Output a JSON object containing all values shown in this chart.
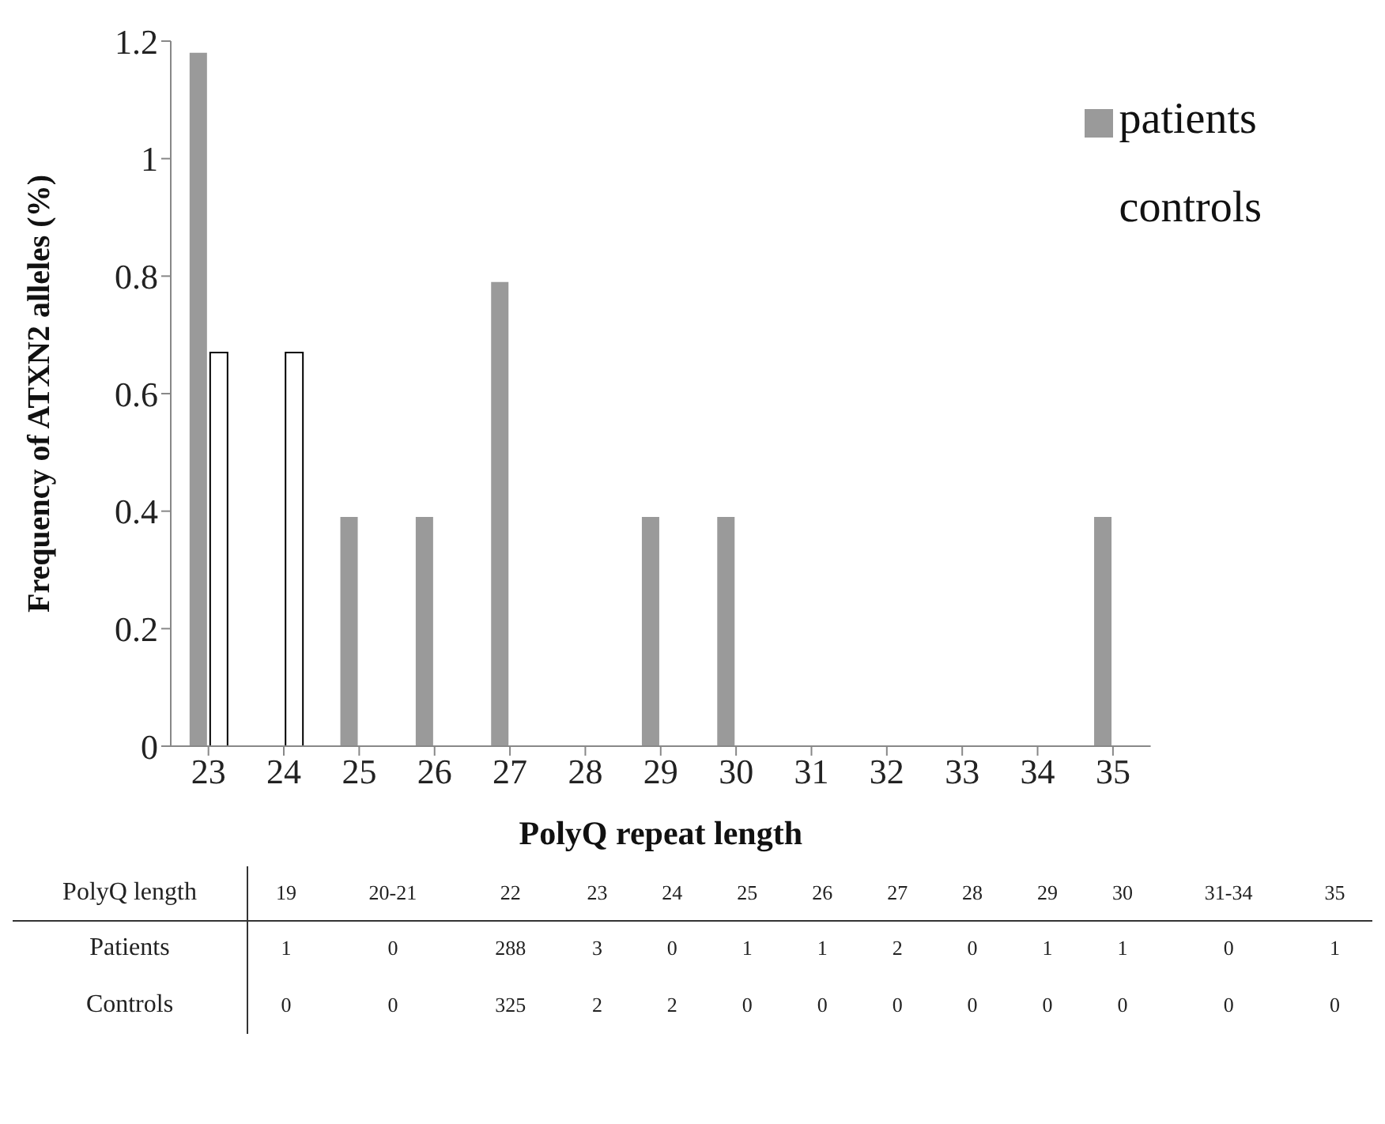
{
  "chart_data": [
    {
      "type": "bar",
      "xlabel": "PolyQ repeat length",
      "ylabel": "Frequency of ATXN2 alleles (%)",
      "categories": [
        "23",
        "24",
        "25",
        "26",
        "27",
        "28",
        "29",
        "30",
        "31",
        "32",
        "33",
        "34",
        "35"
      ],
      "series": [
        {
          "name": "patients",
          "color": "#9a9a9a",
          "values": [
            1.18,
            0,
            0.39,
            0.39,
            0.79,
            0,
            0.39,
            0.39,
            0,
            0,
            0,
            0,
            0.39
          ]
        },
        {
          "name": "controls",
          "color": "#ffffff",
          "values": [
            0.67,
            0.67,
            0,
            0,
            0,
            0,
            0,
            0,
            0,
            0,
            0,
            0,
            0
          ]
        }
      ],
      "ylim": [
        0,
        1.2
      ],
      "yticks": [
        0,
        0.2,
        0.4,
        0.6,
        0.8,
        1,
        1.2
      ],
      "grid": false,
      "legend": "top right"
    },
    {
      "type": "heatmap",
      "data_labels": true,
      "xlabel": "PolyQ length",
      "categories": [
        "19",
        "20-21",
        "22",
        "23",
        "24",
        "25",
        "26",
        "27",
        "28",
        "29",
        "30",
        "31-34",
        "35"
      ],
      "y_categories": [
        "Patients",
        "Controls"
      ],
      "cells": [
        [
          1,
          0,
          288,
          3,
          0,
          1,
          1,
          2,
          0,
          1,
          1,
          0,
          1
        ],
        [
          0,
          0,
          325,
          2,
          2,
          0,
          0,
          0,
          0,
          0,
          0,
          0,
          0
        ]
      ]
    }
  ]
}
